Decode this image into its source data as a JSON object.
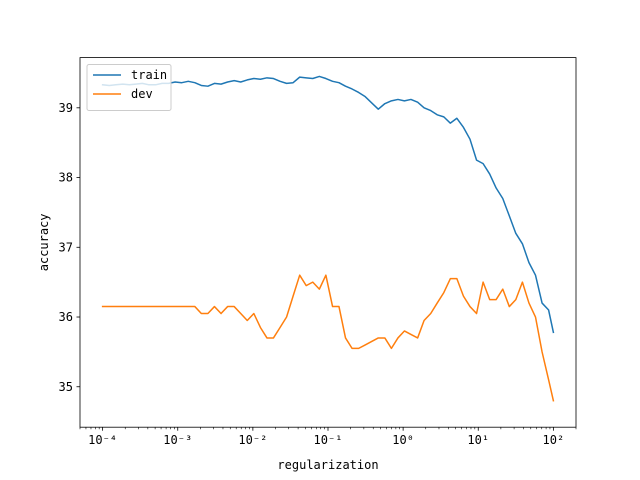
{
  "chart_data": {
    "type": "line",
    "title": "",
    "xlabel": "regularization",
    "ylabel": "accuracy",
    "xscale": "log",
    "xlim": [
      5e-05,
      200
    ],
    "ylim": [
      34.42,
      39.72
    ],
    "grid": false,
    "legend_position": "top-left",
    "x_ticks": [
      {
        "value": 0.0001,
        "label": "10⁻⁴"
      },
      {
        "value": 0.001,
        "label": "10⁻³"
      },
      {
        "value": 0.01,
        "label": "10⁻²"
      },
      {
        "value": 0.1,
        "label": "10⁻¹"
      },
      {
        "value": 1,
        "label": "10⁰"
      },
      {
        "value": 10,
        "label": "10¹"
      },
      {
        "value": 100,
        "label": "10²"
      }
    ],
    "y_ticks": [
      {
        "value": 35,
        "label": "35"
      },
      {
        "value": 36,
        "label": "36"
      },
      {
        "value": 37,
        "label": "37"
      },
      {
        "value": 38,
        "label": "38"
      },
      {
        "value": 39,
        "label": "39"
      }
    ],
    "series": [
      {
        "name": "train",
        "color": "#1f77b4",
        "points": [
          [
            0.0001,
            39.33
          ],
          [
            0.000123,
            39.32
          ],
          [
            0.00015,
            39.33
          ],
          [
            0.000186,
            39.34
          ],
          [
            0.000226,
            39.33
          ],
          [
            0.000276,
            39.34
          ],
          [
            0.000338,
            39.35
          ],
          [
            0.000414,
            39.33
          ],
          [
            0.000506,
            39.33
          ],
          [
            0.000619,
            39.35
          ],
          [
            0.000756,
            39.35
          ],
          [
            0.000924,
            39.37
          ],
          [
            0.00113,
            39.36
          ],
          [
            0.00138,
            39.38
          ],
          [
            0.00169,
            39.36
          ],
          [
            0.00206,
            39.32
          ],
          [
            0.00252,
            39.31
          ],
          [
            0.00308,
            39.35
          ],
          [
            0.00377,
            39.34
          ],
          [
            0.00461,
            39.37
          ],
          [
            0.00564,
            39.39
          ],
          [
            0.00689,
            39.37
          ],
          [
            0.00842,
            39.4
          ],
          [
            0.0103,
            39.42
          ],
          [
            0.0126,
            39.41
          ],
          [
            0.0154,
            39.43
          ],
          [
            0.0188,
            39.42
          ],
          [
            0.023,
            39.38
          ],
          [
            0.0281,
            39.35
          ],
          [
            0.0343,
            39.36
          ],
          [
            0.042,
            39.44
          ],
          [
            0.0513,
            39.43
          ],
          [
            0.0627,
            39.42
          ],
          [
            0.0767,
            39.45
          ],
          [
            0.0937,
            39.42
          ],
          [
            0.115,
            39.38
          ],
          [
            0.14,
            39.36
          ],
          [
            0.171,
            39.31
          ],
          [
            0.209,
            39.27
          ],
          [
            0.256,
            39.22
          ],
          [
            0.313,
            39.16
          ],
          [
            0.382,
            39.07
          ],
          [
            0.467,
            38.98
          ],
          [
            0.571,
            39.06
          ],
          [
            0.698,
            39.1
          ],
          [
            0.853,
            39.12
          ],
          [
            1.04,
            39.1
          ],
          [
            1.27,
            39.12
          ],
          [
            1.56,
            39.08
          ],
          [
            1.9,
            39.0
          ],
          [
            2.33,
            38.96
          ],
          [
            2.84,
            38.9
          ],
          [
            3.48,
            38.87
          ],
          [
            4.25,
            38.78
          ],
          [
            5.19,
            38.85
          ],
          [
            6.35,
            38.72
          ],
          [
            7.76,
            38.55
          ],
          [
            9.49,
            38.25
          ],
          [
            11.6,
            38.2
          ],
          [
            14.2,
            38.05
          ],
          [
            17.3,
            37.85
          ],
          [
            21.2,
            37.7
          ],
          [
            25.9,
            37.45
          ],
          [
            31.6,
            37.2
          ],
          [
            38.7,
            37.05
          ],
          [
            47.3,
            36.78
          ],
          [
            57.8,
            36.6
          ],
          [
            70.7,
            36.2
          ],
          [
            86.4,
            36.1
          ],
          [
            100,
            35.78
          ]
        ]
      },
      {
        "name": "dev",
        "color": "#ff7f0e",
        "points": [
          [
            0.0001,
            36.15
          ],
          [
            0.000123,
            36.15
          ],
          [
            0.00015,
            36.15
          ],
          [
            0.000186,
            36.15
          ],
          [
            0.000226,
            36.15
          ],
          [
            0.000276,
            36.15
          ],
          [
            0.000338,
            36.15
          ],
          [
            0.000414,
            36.15
          ],
          [
            0.000506,
            36.15
          ],
          [
            0.000619,
            36.15
          ],
          [
            0.000756,
            36.15
          ],
          [
            0.000924,
            36.15
          ],
          [
            0.00113,
            36.15
          ],
          [
            0.00138,
            36.15
          ],
          [
            0.00169,
            36.15
          ],
          [
            0.00206,
            36.05
          ],
          [
            0.00252,
            36.05
          ],
          [
            0.00308,
            36.15
          ],
          [
            0.00377,
            36.05
          ],
          [
            0.00461,
            36.15
          ],
          [
            0.00564,
            36.15
          ],
          [
            0.00689,
            36.05
          ],
          [
            0.00842,
            35.95
          ],
          [
            0.0103,
            36.05
          ],
          [
            0.0126,
            35.85
          ],
          [
            0.0154,
            35.7
          ],
          [
            0.0188,
            35.7
          ],
          [
            0.023,
            35.85
          ],
          [
            0.0281,
            36.0
          ],
          [
            0.0343,
            36.3
          ],
          [
            0.042,
            36.6
          ],
          [
            0.0513,
            36.45
          ],
          [
            0.0627,
            36.5
          ],
          [
            0.0767,
            36.4
          ],
          [
            0.0937,
            36.6
          ],
          [
            0.115,
            36.15
          ],
          [
            0.14,
            36.15
          ],
          [
            0.171,
            35.7
          ],
          [
            0.209,
            35.55
          ],
          [
            0.256,
            35.55
          ],
          [
            0.313,
            35.6
          ],
          [
            0.382,
            35.65
          ],
          [
            0.467,
            35.7
          ],
          [
            0.571,
            35.7
          ],
          [
            0.698,
            35.55
          ],
          [
            0.853,
            35.7
          ],
          [
            1.04,
            35.8
          ],
          [
            1.27,
            35.75
          ],
          [
            1.56,
            35.7
          ],
          [
            1.9,
            35.95
          ],
          [
            2.33,
            36.05
          ],
          [
            2.84,
            36.2
          ],
          [
            3.48,
            36.35
          ],
          [
            4.25,
            36.55
          ],
          [
            5.19,
            36.55
          ],
          [
            6.35,
            36.3
          ],
          [
            7.76,
            36.15
          ],
          [
            9.49,
            36.05
          ],
          [
            11.6,
            36.5
          ],
          [
            14.2,
            36.25
          ],
          [
            17.3,
            36.25
          ],
          [
            21.2,
            36.4
          ],
          [
            25.9,
            36.15
          ],
          [
            31.6,
            36.25
          ],
          [
            38.7,
            36.5
          ],
          [
            47.3,
            36.2
          ],
          [
            57.8,
            36.0
          ],
          [
            70.7,
            35.5
          ],
          [
            86.4,
            35.1
          ],
          [
            100,
            34.8
          ]
        ]
      }
    ]
  }
}
